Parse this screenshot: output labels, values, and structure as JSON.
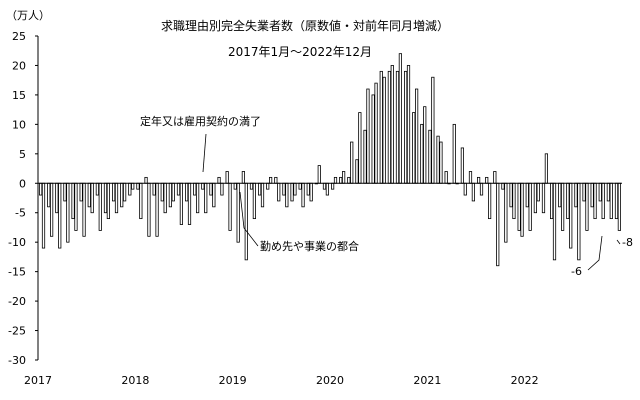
{
  "chart_data": {
    "type": "bar",
    "title": "求職理由別完全失業者数（原数値・対前年同月増減）",
    "subtitle": "2017年1月～2022年12月",
    "ylabel": "（万人）",
    "xlabel": "",
    "ylim": [
      -30,
      25
    ],
    "yticks": [
      "25",
      "20",
      "15",
      "10",
      "5",
      "0",
      "-5",
      "-10",
      "-15",
      "-20",
      "-25",
      "-30"
    ],
    "ytick_values": [
      25,
      20,
      15,
      10,
      5,
      0,
      -5,
      -10,
      -15,
      -20,
      -25,
      -30
    ],
    "xtick_labels": [
      "2017",
      "2018",
      "2019",
      "2020",
      "2021",
      "2022"
    ],
    "grid": false,
    "legend": "none",
    "bar_style": "outlined",
    "series": [
      {
        "name": "定年又は雇用契約の満了",
        "values": [
          -2,
          -4,
          -5,
          -3,
          -6,
          -3,
          -4,
          -2,
          -5,
          -3,
          -4,
          -2,
          -1,
          1,
          -2,
          -3,
          -4,
          -2,
          -3,
          -2,
          -1,
          -2,
          1,
          2,
          -1,
          2,
          -1,
          -2,
          -1,
          1,
          -2,
          -3,
          -1,
          -2,
          0,
          -1,
          -1,
          1,
          1,
          4,
          9,
          15,
          19,
          19,
          19,
          19,
          12,
          10,
          9,
          8,
          2,
          10,
          6,
          2,
          1,
          1,
          2,
          -1,
          -4,
          -8,
          -4,
          -5,
          -5,
          -6,
          -4,
          -6,
          -4,
          -3,
          -4,
          -3,
          -3,
          -6
        ]
      },
      {
        "name": "勤め先や事業の都合",
        "values": [
          -11,
          -9,
          -11,
          -10,
          -8,
          -9,
          -5,
          -8,
          -6,
          -5,
          -3,
          -1,
          -6,
          -9,
          -9,
          -5,
          -3,
          -7,
          -7,
          -5,
          -5,
          -4,
          -2,
          -8,
          -10,
          -13,
          -6,
          -4,
          1,
          -3,
          -4,
          -2,
          -4,
          -3,
          3,
          -2,
          1,
          2,
          7,
          12,
          16,
          17,
          18,
          20,
          22,
          20,
          16,
          13,
          18,
          7,
          0,
          0,
          -2,
          -3,
          -2,
          -6,
          -14,
          -10,
          -6,
          -9,
          -8,
          -3,
          5,
          -13,
          -8,
          -11,
          -13,
          -8,
          -6,
          -6,
          -6,
          -8
        ]
      }
    ],
    "annotations": [
      {
        "text": "定年又は雇用契約の満了",
        "target_series": 0,
        "target_index": 23
      },
      {
        "text": "勤め先や事業の都合",
        "target_series": 1,
        "target_index": 34
      },
      {
        "text": "-6",
        "target_series": 0,
        "target_index": 71
      },
      {
        "text": "-8",
        "target_series": 1,
        "target_index": 71
      }
    ]
  }
}
